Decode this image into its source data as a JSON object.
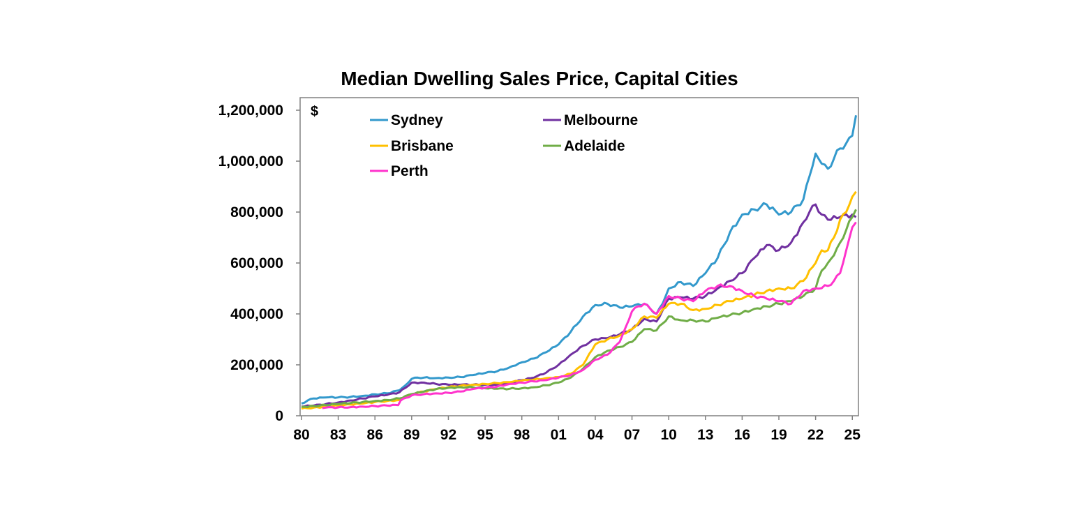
{
  "chart_data": {
    "type": "line",
    "title": "Median Dwelling Sales Price, Capital Cities",
    "unit_label": "$",
    "xlabel": "",
    "ylabel": "",
    "xlim": [
      1980,
      2025.5
    ],
    "ylim": [
      0,
      1200000
    ],
    "x_ticks": [
      "80",
      "83",
      "86",
      "89",
      "92",
      "95",
      "98",
      "01",
      "04",
      "07",
      "10",
      "13",
      "16",
      "19",
      "22",
      "25"
    ],
    "x_tick_values": [
      1980,
      1983,
      1986,
      1989,
      1992,
      1995,
      1998,
      2001,
      2004,
      2007,
      2010,
      2013,
      2016,
      2019,
      2022,
      2025
    ],
    "y_ticks": [
      "0",
      "200,000",
      "400,000",
      "600,000",
      "800,000",
      "1,000,000",
      "1,200,000"
    ],
    "y_tick_values": [
      0,
      200000,
      400000,
      600000,
      800000,
      1000000,
      1200000
    ],
    "grid": false,
    "legend_position": "top-left",
    "series": [
      {
        "name": "Sydney",
        "color": "#3399CC",
        "x": [
          1980,
          1980.5,
          1981,
          1982,
          1983,
          1984,
          1985,
          1986,
          1987,
          1988,
          1988.5,
          1989,
          1989.5,
          1990,
          1991,
          1992,
          1993,
          1994,
          1995,
          1996,
          1997,
          1998,
          1999,
          2000,
          2001,
          2002,
          2003,
          2004,
          2005,
          2006,
          2007,
          2008,
          2008.5,
          2009,
          2009.5,
          2010,
          2011,
          2012,
          2013,
          2014,
          2015,
          2016,
          2017,
          2018,
          2019,
          2020,
          2021,
          2021.5,
          2022,
          2022.5,
          2023,
          2023.5,
          2024,
          2024.5,
          2025,
          2025.3
        ],
        "y": [
          48000,
          60000,
          68000,
          72000,
          72000,
          74000,
          78000,
          84000,
          88000,
          100000,
          120000,
          145000,
          150000,
          150000,
          148000,
          150000,
          152000,
          160000,
          168000,
          175000,
          190000,
          210000,
          225000,
          250000,
          280000,
          330000,
          390000,
          435000,
          440000,
          425000,
          430000,
          440000,
          420000,
          400000,
          440000,
          500000,
          525000,
          510000,
          560000,
          620000,
          720000,
          790000,
          810000,
          830000,
          790000,
          800000,
          850000,
          940000,
          1030000,
          990000,
          970000,
          1010000,
          1050000,
          1070000,
          1100000,
          1180000
        ]
      },
      {
        "name": "Melbourne",
        "color": "#7030A0",
        "x": [
          1980,
          1981,
          1982,
          1983,
          1984,
          1985,
          1986,
          1987,
          1988,
          1989,
          1990,
          1991,
          1992,
          1993,
          1994,
          1995,
          1996,
          1997,
          1998,
          1999,
          2000,
          2001,
          2002,
          2003,
          2004,
          2005,
          2006,
          2007,
          2008,
          2009,
          2010,
          2011,
          2012,
          2013,
          2014,
          2015,
          2016,
          2017,
          2018,
          2019,
          2020,
          2021,
          2021.5,
          2022,
          2022.5,
          2023,
          2024,
          2025,
          2025.3
        ],
        "y": [
          36000,
          40000,
          46000,
          52000,
          60000,
          68000,
          76000,
          82000,
          92000,
          130000,
          130000,
          125000,
          122000,
          122000,
          122000,
          122000,
          122000,
          128000,
          140000,
          150000,
          170000,
          200000,
          240000,
          275000,
          300000,
          305000,
          320000,
          340000,
          380000,
          370000,
          460000,
          465000,
          460000,
          470000,
          500000,
          530000,
          560000,
          620000,
          670000,
          650000,
          680000,
          760000,
          800000,
          830000,
          790000,
          770000,
          780000,
          790000,
          780000
        ]
      },
      {
        "name": "Brisbane",
        "color": "#FFC000",
        "x": [
          1980,
          1981,
          1982,
          1983,
          1984,
          1985,
          1986,
          1987,
          1988,
          1989,
          1990,
          1991,
          1992,
          1993,
          1994,
          1995,
          1996,
          1997,
          1998,
          1999,
          2000,
          2001,
          2002,
          2003,
          2004,
          2005,
          2006,
          2007,
          2008,
          2009,
          2010,
          2011,
          2012,
          2013,
          2014,
          2015,
          2016,
          2017,
          2018,
          2019,
          2020,
          2021,
          2022,
          2022.5,
          2023,
          2023.5,
          2024,
          2024.5,
          2025,
          2025.3
        ],
        "y": [
          28000,
          32000,
          36000,
          40000,
          44000,
          48000,
          54000,
          58000,
          62000,
          85000,
          95000,
          105000,
          112000,
          118000,
          122000,
          125000,
          128000,
          132000,
          138000,
          142000,
          148000,
          152000,
          165000,
          200000,
          280000,
          300000,
          315000,
          340000,
          390000,
          385000,
          440000,
          440000,
          415000,
          420000,
          435000,
          450000,
          460000,
          475000,
          490000,
          500000,
          500000,
          530000,
          600000,
          650000,
          650000,
          700000,
          770000,
          800000,
          860000,
          880000
        ]
      },
      {
        "name": "Adelaide",
        "color": "#70AD47",
        "x": [
          1980,
          1981,
          1982,
          1983,
          1984,
          1985,
          1986,
          1987,
          1988,
          1989,
          1990,
          1991,
          1992,
          1993,
          1994,
          1995,
          1996,
          1997,
          1998,
          1999,
          2000,
          2001,
          2002,
          2003,
          2004,
          2005,
          2006,
          2007,
          2008,
          2009,
          2010,
          2011,
          2012,
          2013,
          2014,
          2015,
          2016,
          2017,
          2018,
          2019,
          2020,
          2021,
          2022,
          2022.5,
          2023,
          2023.5,
          2024,
          2024.5,
          2025,
          2025.3
        ],
        "y": [
          35000,
          38000,
          42000,
          46000,
          50000,
          54000,
          58000,
          62000,
          68000,
          85000,
          95000,
          105000,
          110000,
          112000,
          112000,
          108000,
          106000,
          106000,
          108000,
          112000,
          120000,
          130000,
          150000,
          185000,
          230000,
          255000,
          270000,
          290000,
          340000,
          335000,
          390000,
          375000,
          375000,
          370000,
          385000,
          395000,
          405000,
          420000,
          430000,
          440000,
          450000,
          470000,
          500000,
          570000,
          600000,
          630000,
          680000,
          730000,
          780000,
          810000
        ]
      },
      {
        "name": "Perth",
        "color": "#FF33CC",
        "x": [
          1981.7,
          1982,
          1983,
          1984,
          1985,
          1986,
          1987,
          1987.9,
          1988.1,
          1989,
          1990,
          1991,
          1992,
          1993,
          1994,
          1995,
          1996,
          1997,
          1998,
          1999,
          2000,
          2001,
          2002,
          2003,
          2004,
          2005,
          2006,
          2006.5,
          2007,
          2007.5,
          2008,
          2008.5,
          2009,
          2010,
          2011,
          2012,
          2013,
          2014,
          2015,
          2016,
          2017,
          2018,
          2019,
          2020,
          2021,
          2022,
          2023,
          2023.5,
          2024,
          2024.5,
          2025,
          2025.3
        ],
        "y": [
          30000,
          32000,
          33000,
          34000,
          36000,
          38000,
          40000,
          42000,
          60000,
          80000,
          85000,
          88000,
          90000,
          95000,
          105000,
          110000,
          115000,
          125000,
          130000,
          135000,
          140000,
          150000,
          160000,
          180000,
          220000,
          240000,
          290000,
          350000,
          410000,
          430000,
          440000,
          420000,
          400000,
          470000,
          460000,
          450000,
          490000,
          510000,
          510000,
          490000,
          470000,
          460000,
          450000,
          440000,
          490000,
          500000,
          510000,
          530000,
          560000,
          650000,
          740000,
          760000
        ]
      }
    ]
  }
}
